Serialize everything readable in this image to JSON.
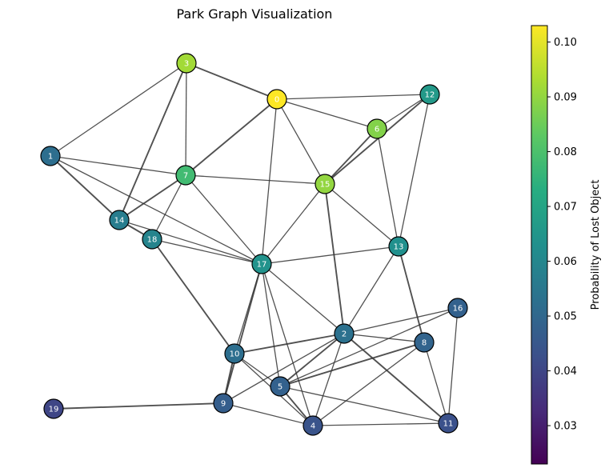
{
  "title": "Park Graph Visualization",
  "colorbar": {
    "label": "Probability of Lost Object",
    "ticks": [
      "0.03",
      "0.04",
      "0.05",
      "0.06",
      "0.07",
      "0.08",
      "0.09",
      "0.10"
    ],
    "colormap": "viridis",
    "range": [
      0.023,
      0.103
    ]
  },
  "nodes": [
    {
      "id": "0",
      "prob": 0.103
    },
    {
      "id": "1",
      "prob": 0.052
    },
    {
      "id": "2",
      "prob": 0.053
    },
    {
      "id": "3",
      "prob": 0.092
    },
    {
      "id": "4",
      "prob": 0.044
    },
    {
      "id": "5",
      "prob": 0.048
    },
    {
      "id": "6",
      "prob": 0.088
    },
    {
      "id": "7",
      "prob": 0.078
    },
    {
      "id": "8",
      "prob": 0.049
    },
    {
      "id": "9",
      "prob": 0.047
    },
    {
      "id": "10",
      "prob": 0.052
    },
    {
      "id": "11",
      "prob": 0.043
    },
    {
      "id": "12",
      "prob": 0.066
    },
    {
      "id": "13",
      "prob": 0.063
    },
    {
      "id": "14",
      "prob": 0.057
    },
    {
      "id": "15",
      "prob": 0.09
    },
    {
      "id": "16",
      "prob": 0.048
    },
    {
      "id": "17",
      "prob": 0.064
    },
    {
      "id": "18",
      "prob": 0.059
    },
    {
      "id": "19",
      "prob": 0.04
    }
  ],
  "edges": [
    [
      "3",
      "0"
    ],
    [
      "3",
      "1"
    ],
    [
      "3",
      "7"
    ],
    [
      "3",
      "14"
    ],
    [
      "0",
      "12"
    ],
    [
      "0",
      "6"
    ],
    [
      "0",
      "7"
    ],
    [
      "0",
      "17"
    ],
    [
      "0",
      "15"
    ],
    [
      "12",
      "15"
    ],
    [
      "12",
      "6"
    ],
    [
      "12",
      "13"
    ],
    [
      "6",
      "15"
    ],
    [
      "6",
      "13"
    ],
    [
      "1",
      "7"
    ],
    [
      "1",
      "14"
    ],
    [
      "1",
      "17"
    ],
    [
      "7",
      "15"
    ],
    [
      "7",
      "14"
    ],
    [
      "7",
      "18"
    ],
    [
      "7",
      "17"
    ],
    [
      "14",
      "18"
    ],
    [
      "14",
      "17"
    ],
    [
      "18",
      "17"
    ],
    [
      "18",
      "10"
    ],
    [
      "15",
      "17"
    ],
    [
      "15",
      "13"
    ],
    [
      "15",
      "2"
    ],
    [
      "13",
      "17"
    ],
    [
      "13",
      "2"
    ],
    [
      "13",
      "8"
    ],
    [
      "17",
      "2"
    ],
    [
      "17",
      "10"
    ],
    [
      "17",
      "9"
    ],
    [
      "17",
      "5"
    ],
    [
      "17",
      "4"
    ],
    [
      "2",
      "10"
    ],
    [
      "2",
      "16"
    ],
    [
      "2",
      "8"
    ],
    [
      "2",
      "5"
    ],
    [
      "2",
      "9"
    ],
    [
      "2",
      "4"
    ],
    [
      "2",
      "11"
    ],
    [
      "16",
      "11"
    ],
    [
      "16",
      "5"
    ],
    [
      "8",
      "5"
    ],
    [
      "8",
      "4"
    ],
    [
      "8",
      "11"
    ],
    [
      "10",
      "9"
    ],
    [
      "10",
      "5"
    ],
    [
      "10",
      "4"
    ],
    [
      "5",
      "4"
    ],
    [
      "5",
      "11"
    ],
    [
      "9",
      "4"
    ],
    [
      "9",
      "19"
    ],
    [
      "4",
      "11"
    ]
  ]
}
